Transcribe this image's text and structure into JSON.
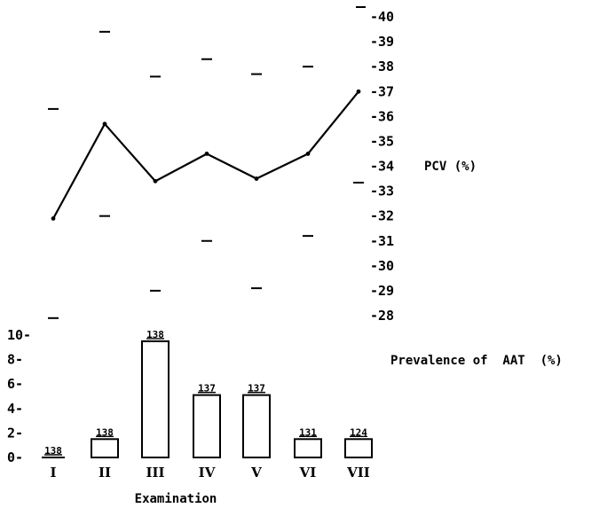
{
  "chart_data": [
    {
      "type": "line",
      "ylabel": "PCV (%)",
      "ylim": [
        28,
        40
      ],
      "y_ticks": [
        28,
        29,
        30,
        31,
        32,
        33,
        34,
        35,
        36,
        37,
        38,
        39,
        40
      ],
      "x": [
        "I",
        "II",
        "III",
        "IV",
        "V",
        "VI",
        "VII"
      ],
      "values": [
        31.9,
        35.7,
        33.4,
        34.5,
        33.5,
        34.5,
        37.0
      ],
      "upper_error": [
        36.3,
        39.4,
        37.6,
        38.3,
        37.7,
        38.0
      ],
      "lower_error": [
        27.9,
        32.0,
        29.0,
        31.0,
        29.1,
        31.2
      ]
    },
    {
      "type": "bar",
      "ylabel": "Prevalence of  AAT  (%)",
      "xlabel": "Examination",
      "ylim": [
        0,
        10
      ],
      "y_ticks": [
        0,
        2,
        4,
        6,
        8,
        10
      ],
      "categories": [
        "I",
        "II",
        "III",
        "IV",
        "V",
        "VI",
        "VII"
      ],
      "values": [
        0,
        1.5,
        9.5,
        5.1,
        5.1,
        1.5,
        1.5
      ],
      "counts": [
        "138",
        "138",
        "138",
        "137",
        "137",
        "131",
        "124"
      ]
    }
  ]
}
